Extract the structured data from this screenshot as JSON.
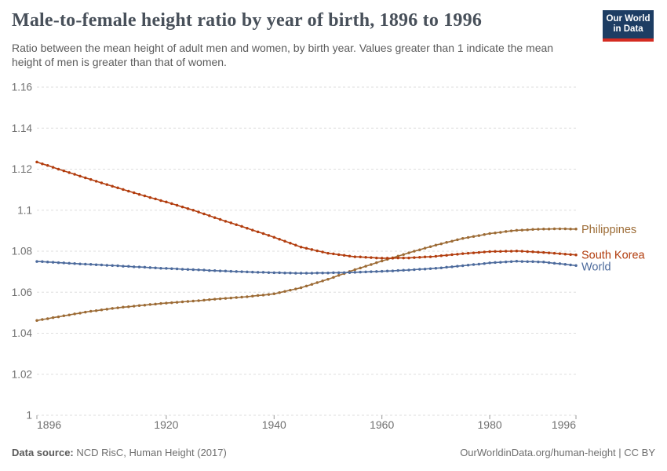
{
  "header": {
    "title": "Male-to-female height ratio by year of birth, 1896 to 1996",
    "subtitle": "Ratio between the mean height of adult men and women, by birth year. Values greater than 1 indicate the mean height of men is greater than that of women.",
    "logo": {
      "line1": "Our World",
      "line2": "in Data",
      "bg_color": "#1D3D63",
      "stripe_color": "#D42B21"
    }
  },
  "footer": {
    "source_label": "Data source:",
    "source_value": " NCD RisC, Human Height (2017)",
    "link_text": "OurWorldinData.org/human-height | CC BY"
  },
  "chart_data": {
    "type": "line",
    "title": "Male-to-female height ratio by year of birth, 1896 to 1996",
    "subtitle": "Ratio between the mean height of adult men and women, by birth year. Values greater than 1 indicate the mean height of men is greater than that of women.",
    "xlabel": "",
    "ylabel": "",
    "xlim": [
      1896,
      1996
    ],
    "ylim": [
      1.0,
      1.16
    ],
    "xticks": [
      1896,
      1920,
      1940,
      1960,
      1980,
      1996
    ],
    "yticks": [
      1,
      1.02,
      1.04,
      1.06,
      1.08,
      1.1,
      1.12,
      1.14,
      1.16
    ],
    "grid": "horizontal-dashed",
    "legend": "line-end-labels",
    "marker": "dot-every-year",
    "colors": {
      "grid": "#DEDEDE",
      "tick_label": "#707070",
      "tick_mark": "#999999"
    },
    "x": [
      1896,
      1897,
      1898,
      1899,
      1900,
      1901,
      1902,
      1903,
      1904,
      1905,
      1906,
      1907,
      1908,
      1909,
      1910,
      1911,
      1912,
      1913,
      1914,
      1915,
      1916,
      1917,
      1918,
      1919,
      1920,
      1921,
      1922,
      1923,
      1924,
      1925,
      1926,
      1927,
      1928,
      1929,
      1930,
      1931,
      1932,
      1933,
      1934,
      1935,
      1936,
      1937,
      1938,
      1939,
      1940,
      1941,
      1942,
      1943,
      1944,
      1945,
      1946,
      1947,
      1948,
      1949,
      1950,
      1951,
      1952,
      1953,
      1954,
      1955,
      1956,
      1957,
      1958,
      1959,
      1960,
      1961,
      1962,
      1963,
      1964,
      1965,
      1966,
      1967,
      1968,
      1969,
      1970,
      1971,
      1972,
      1973,
      1974,
      1975,
      1976,
      1977,
      1978,
      1979,
      1980,
      1981,
      1982,
      1983,
      1984,
      1985,
      1986,
      1987,
      1988,
      1989,
      1990,
      1991,
      1992,
      1993,
      1994,
      1995,
      1996
    ],
    "series": [
      {
        "name": "Philippines",
        "color": "#9C6B35",
        "values": [
          1.0462,
          1.0467,
          1.0471,
          1.0476,
          1.048,
          1.0485,
          1.0489,
          1.0494,
          1.0498,
          1.0503,
          1.0507,
          1.051,
          1.0514,
          1.0517,
          1.0521,
          1.0524,
          1.0527,
          1.0529,
          1.0532,
          1.0535,
          1.0537,
          1.054,
          1.0542,
          1.0545,
          1.0547,
          1.0549,
          1.0551,
          1.0553,
          1.0555,
          1.0557,
          1.0559,
          1.0561,
          1.0564,
          1.0566,
          1.0568,
          1.057,
          1.0572,
          1.0574,
          1.0576,
          1.0578,
          1.0581,
          1.0584,
          1.0586,
          1.0589,
          1.0592,
          1.0598,
          1.0604,
          1.061,
          1.0616,
          1.0622,
          1.063,
          1.0638,
          1.0647,
          1.0655,
          1.0663,
          1.0672,
          1.0682,
          1.0691,
          1.0701,
          1.071,
          1.0718,
          1.0727,
          1.0735,
          1.0744,
          1.0752,
          1.076,
          1.0768,
          1.0776,
          1.0784,
          1.0792,
          1.08,
          1.0807,
          1.0815,
          1.0822,
          1.083,
          1.0836,
          1.0843,
          1.0849,
          1.0856,
          1.0862,
          1.0867,
          1.0872,
          1.0876,
          1.0881,
          1.0886,
          1.0889,
          1.0892,
          1.0896,
          1.0899,
          1.0902,
          1.0903,
          1.0904,
          1.0906,
          1.0907,
          1.0908,
          1.0908,
          1.0909,
          1.0909,
          1.0909,
          1.0908,
          1.0908
        ]
      },
      {
        "name": "South Korea",
        "color": "#B23D0E",
        "values": [
          1.1235,
          1.1226,
          1.1218,
          1.1209,
          1.12,
          1.1192,
          1.1183,
          1.1175,
          1.1166,
          1.1158,
          1.115,
          1.1141,
          1.1133,
          1.1125,
          1.1117,
          1.1109,
          1.1101,
          1.1093,
          1.1085,
          1.1077,
          1.107,
          1.1062,
          1.1055,
          1.1047,
          1.104,
          1.1032,
          1.1024,
          1.1016,
          1.1008,
          1.1,
          1.0991,
          1.0982,
          1.0973,
          1.0964,
          1.0955,
          1.0946,
          1.0938,
          1.0929,
          1.0921,
          1.0912,
          1.0903,
          1.0894,
          1.0886,
          1.0877,
          1.0868,
          1.0858,
          1.0849,
          1.0839,
          1.083,
          1.082,
          1.0814,
          1.0808,
          1.0802,
          1.0796,
          1.079,
          1.0787,
          1.0783,
          1.078,
          1.0776,
          1.0773,
          1.0772,
          1.077,
          1.0769,
          1.0767,
          1.0766,
          1.0766,
          1.0766,
          1.0767,
          1.0767,
          1.0767,
          1.0769,
          1.077,
          1.0772,
          1.0773,
          1.0775,
          1.0778,
          1.078,
          1.0783,
          1.0785,
          1.0788,
          1.079,
          1.0792,
          1.0794,
          1.0796,
          1.0798,
          1.0799,
          1.0799,
          1.08,
          1.08,
          1.0801,
          1.08,
          1.0798,
          1.0797,
          1.0795,
          1.0794,
          1.0792,
          1.079,
          1.0788,
          1.0786,
          1.0784,
          1.0782
        ]
      },
      {
        "name": "World",
        "color": "#4C6A9C",
        "values": [
          1.075,
          1.0749,
          1.0747,
          1.0746,
          1.0744,
          1.0743,
          1.0741,
          1.074,
          1.0738,
          1.0737,
          1.0736,
          1.0734,
          1.0733,
          1.0731,
          1.073,
          1.0729,
          1.0727,
          1.0726,
          1.0724,
          1.0723,
          1.0722,
          1.072,
          1.0719,
          1.0717,
          1.0716,
          1.0715,
          1.0714,
          1.0712,
          1.0711,
          1.071,
          1.0709,
          1.0708,
          1.0706,
          1.0705,
          1.0704,
          1.0703,
          1.0702,
          1.0701,
          1.07,
          1.0699,
          1.0698,
          1.0697,
          1.0697,
          1.0696,
          1.0695,
          1.0695,
          1.0694,
          1.0694,
          1.0693,
          1.0693,
          1.0693,
          1.0693,
          1.0694,
          1.0694,
          1.0694,
          1.0695,
          1.0695,
          1.0696,
          1.0696,
          1.0697,
          1.0698,
          1.0699,
          1.07,
          1.0701,
          1.0702,
          1.0703,
          1.0704,
          1.0706,
          1.0707,
          1.0708,
          1.071,
          1.0712,
          1.0713,
          1.0715,
          1.0717,
          1.0719,
          1.0722,
          1.0724,
          1.0727,
          1.0729,
          1.0732,
          1.0735,
          1.0737,
          1.074,
          1.0743,
          1.0745,
          1.0746,
          1.0748,
          1.0749,
          1.0751,
          1.075,
          1.0749,
          1.0749,
          1.0748,
          1.0747,
          1.0744,
          1.0741,
          1.0739,
          1.0736,
          1.0733,
          1.073
        ]
      }
    ]
  }
}
